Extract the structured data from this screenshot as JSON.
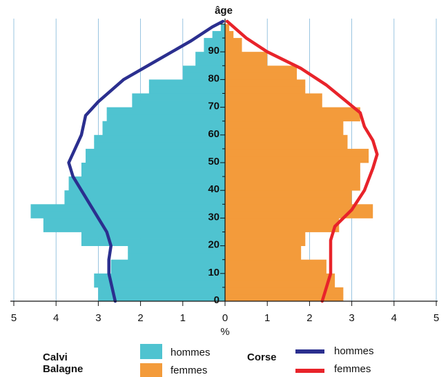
{
  "chart_data": {
    "type": "bar",
    "title": "",
    "ylabel": "âge",
    "xlabel": "%",
    "x_ticks": [
      "5",
      "4",
      "3",
      "2",
      "1",
      "0",
      "1",
      "2",
      "3",
      "4",
      "5"
    ],
    "y_ticks": [
      "0",
      "10",
      "20",
      "30",
      "40",
      "50",
      "60",
      "70",
      "80",
      "90"
    ],
    "xlim": [
      -5,
      5
    ],
    "ylim": [
      0,
      101
    ],
    "grid": "vertical",
    "age_bands": [
      0,
      2.5,
      5,
      7.5,
      10,
      12.5,
      15,
      17.5,
      20,
      22.5,
      25,
      27.5,
      30,
      32.5,
      35,
      37.5,
      40,
      42.5,
      45,
      47.5,
      50,
      52.5,
      55,
      57.5,
      60,
      62.5,
      65,
      67.5,
      70,
      72.5,
      75,
      77.5,
      80,
      82.5,
      85,
      87.5,
      90,
      92.5,
      95,
      97.5
    ],
    "series": [
      {
        "name": "hommes",
        "group": "Calvi Balagne",
        "kind": "bar",
        "side": "left",
        "color": "#4fc3d0",
        "values": [
          3.0,
          3.0,
          3.1,
          3.1,
          2.7,
          2.7,
          2.3,
          2.3,
          3.4,
          3.4,
          4.3,
          4.3,
          4.6,
          4.6,
          3.8,
          3.8,
          3.7,
          3.7,
          3.4,
          3.4,
          3.3,
          3.3,
          3.1,
          3.1,
          2.9,
          2.9,
          2.8,
          2.8,
          2.2,
          2.2,
          1.8,
          1.8,
          1.0,
          1.0,
          0.7,
          0.7,
          0.5,
          0.5,
          0.3,
          0.1
        ]
      },
      {
        "name": "femmes",
        "group": "Calvi Balagne",
        "kind": "bar",
        "side": "right",
        "color": "#f39b3b",
        "values": [
          2.8,
          2.8,
          2.6,
          2.6,
          2.4,
          2.4,
          1.8,
          1.8,
          1.9,
          1.9,
          2.7,
          2.7,
          3.5,
          3.5,
          3.0,
          3.0,
          3.2,
          3.2,
          3.2,
          3.2,
          3.4,
          3.4,
          2.9,
          2.9,
          2.8,
          2.8,
          3.2,
          3.2,
          2.3,
          2.3,
          1.9,
          1.9,
          1.7,
          1.7,
          1.0,
          1.0,
          0.4,
          0.4,
          0.2,
          0.1
        ]
      },
      {
        "name": "hommes",
        "group": "Corse",
        "kind": "line",
        "side": "left",
        "color": "#2b2f8f",
        "x": [
          2.6,
          2.75,
          2.75,
          2.7,
          2.8,
          3.0,
          3.2,
          3.6,
          3.7,
          3.55,
          3.4,
          3.3,
          3.0,
          2.4,
          1.6,
          0.8,
          0.3,
          0.05
        ],
        "y": [
          0,
          10,
          15,
          20,
          25,
          30,
          35,
          45,
          50,
          55,
          60,
          67,
          72,
          80,
          87,
          94,
          99,
          101
        ]
      },
      {
        "name": "femmes",
        "group": "Corse",
        "kind": "line",
        "side": "right",
        "color": "#e8232a",
        "x": [
          2.3,
          2.5,
          2.5,
          2.5,
          2.6,
          3.0,
          3.3,
          3.5,
          3.6,
          3.5,
          3.3,
          3.2,
          2.4,
          1.8,
          1.0,
          0.5,
          0.05
        ],
        "y": [
          0,
          10,
          15,
          22,
          27,
          33,
          40,
          48,
          53,
          58,
          63,
          68,
          78,
          84,
          90,
          95,
          101
        ]
      }
    ]
  },
  "legend": {
    "group1": "Calvi Balagne",
    "group2": "Corse",
    "group1_items": [
      {
        "label": "hommes",
        "color": "#4fc3d0"
      },
      {
        "label": "femmes",
        "color": "#f39b3b"
      }
    ],
    "group2_items": [
      {
        "label": "hommes",
        "color": "#2b2f8f"
      },
      {
        "label": "femmes",
        "color": "#e8232a"
      }
    ]
  }
}
